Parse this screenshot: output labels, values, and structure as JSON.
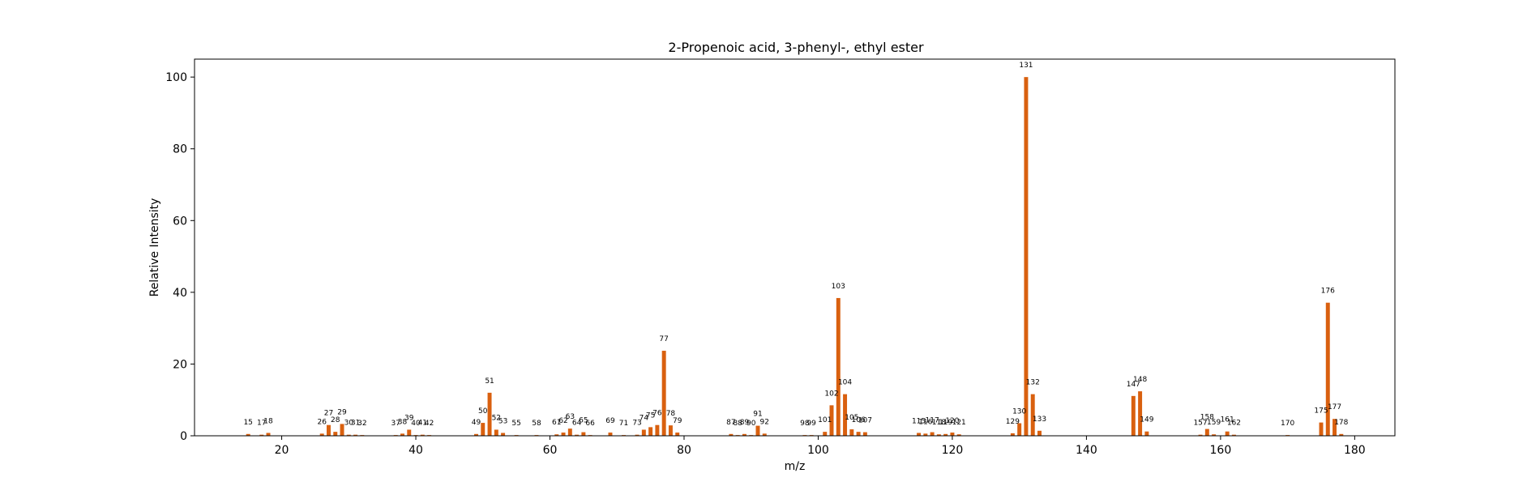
{
  "chart_data": {
    "type": "bar",
    "title": "2-Propenoic acid, 3-phenyl-, ethyl ester",
    "xlabel": "m/z",
    "ylabel": "Relative Intensity",
    "xlim": [
      7,
      186
    ],
    "ylim": [
      0,
      105
    ],
    "xticks": [
      20,
      40,
      60,
      80,
      100,
      120,
      140,
      160,
      180
    ],
    "yticks": [
      0,
      20,
      40,
      60,
      80,
      100
    ],
    "bar_color": "#d9600f",
    "grid": false,
    "points": [
      {
        "mz": 15,
        "intensity": 0.5
      },
      {
        "mz": 17,
        "intensity": 0.3
      },
      {
        "mz": 18,
        "intensity": 0.8
      },
      {
        "mz": 26,
        "intensity": 0.6
      },
      {
        "mz": 27,
        "intensity": 3.0
      },
      {
        "mz": 28,
        "intensity": 1.1
      },
      {
        "mz": 29,
        "intensity": 3.3
      },
      {
        "mz": 30,
        "intensity": 0.3
      },
      {
        "mz": 31,
        "intensity": 0.3
      },
      {
        "mz": 32,
        "intensity": 0.2
      },
      {
        "mz": 37,
        "intensity": 0.2
      },
      {
        "mz": 38,
        "intensity": 0.6
      },
      {
        "mz": 39,
        "intensity": 1.7
      },
      {
        "mz": 40,
        "intensity": 0.2
      },
      {
        "mz": 41,
        "intensity": 0.3
      },
      {
        "mz": 42,
        "intensity": 0.2
      },
      {
        "mz": 49,
        "intensity": 0.5
      },
      {
        "mz": 50,
        "intensity": 3.6
      },
      {
        "mz": 51,
        "intensity": 12.0
      },
      {
        "mz": 52,
        "intensity": 1.7
      },
      {
        "mz": 53,
        "intensity": 0.8
      },
      {
        "mz": 55,
        "intensity": 0.2
      },
      {
        "mz": 58,
        "intensity": 0.2
      },
      {
        "mz": 61,
        "intensity": 0.4
      },
      {
        "mz": 62,
        "intensity": 0.9
      },
      {
        "mz": 63,
        "intensity": 2.0
      },
      {
        "mz": 64,
        "intensity": 0.3
      },
      {
        "mz": 65,
        "intensity": 1.0
      },
      {
        "mz": 66,
        "intensity": 0.2
      },
      {
        "mz": 69,
        "intensity": 0.9
      },
      {
        "mz": 71,
        "intensity": 0.2
      },
      {
        "mz": 73,
        "intensity": 0.3
      },
      {
        "mz": 74,
        "intensity": 1.7
      },
      {
        "mz": 75,
        "intensity": 2.4
      },
      {
        "mz": 76,
        "intensity": 3.0
      },
      {
        "mz": 77,
        "intensity": 23.7
      },
      {
        "mz": 78,
        "intensity": 2.9
      },
      {
        "mz": 79,
        "intensity": 0.9
      },
      {
        "mz": 87,
        "intensity": 0.5
      },
      {
        "mz": 88,
        "intensity": 0.2
      },
      {
        "mz": 89,
        "intensity": 0.5
      },
      {
        "mz": 90,
        "intensity": 0.2
      },
      {
        "mz": 91,
        "intensity": 2.8
      },
      {
        "mz": 92,
        "intensity": 0.6
      },
      {
        "mz": 98,
        "intensity": 0.2
      },
      {
        "mz": 99,
        "intensity": 0.2
      },
      {
        "mz": 101,
        "intensity": 1.1
      },
      {
        "mz": 102,
        "intensity": 8.5
      },
      {
        "mz": 103,
        "intensity": 38.4
      },
      {
        "mz": 104,
        "intensity": 11.6
      },
      {
        "mz": 105,
        "intensity": 1.8
      },
      {
        "mz": 106,
        "intensity": 1.1
      },
      {
        "mz": 107,
        "intensity": 1.0
      },
      {
        "mz": 115,
        "intensity": 0.8
      },
      {
        "mz": 116,
        "intensity": 0.6
      },
      {
        "mz": 117,
        "intensity": 1.0
      },
      {
        "mz": 118,
        "intensity": 0.4
      },
      {
        "mz": 119,
        "intensity": 0.5
      },
      {
        "mz": 120,
        "intensity": 0.9
      },
      {
        "mz": 121,
        "intensity": 0.4
      },
      {
        "mz": 129,
        "intensity": 0.7
      },
      {
        "mz": 130,
        "intensity": 3.5
      },
      {
        "mz": 131,
        "intensity": 100
      },
      {
        "mz": 132,
        "intensity": 11.6
      },
      {
        "mz": 133,
        "intensity": 1.4
      },
      {
        "mz": 147,
        "intensity": 11.1
      },
      {
        "mz": 148,
        "intensity": 12.4
      },
      {
        "mz": 149,
        "intensity": 1.2
      },
      {
        "mz": 157,
        "intensity": 0.3
      },
      {
        "mz": 158,
        "intensity": 1.9
      },
      {
        "mz": 159,
        "intensity": 0.4
      },
      {
        "mz": 161,
        "intensity": 1.2
      },
      {
        "mz": 162,
        "intensity": 0.3
      },
      {
        "mz": 170,
        "intensity": 0.2
      },
      {
        "mz": 175,
        "intensity": 3.7
      },
      {
        "mz": 176,
        "intensity": 37.1
      },
      {
        "mz": 177,
        "intensity": 4.7
      },
      {
        "mz": 178,
        "intensity": 0.5
      }
    ]
  }
}
